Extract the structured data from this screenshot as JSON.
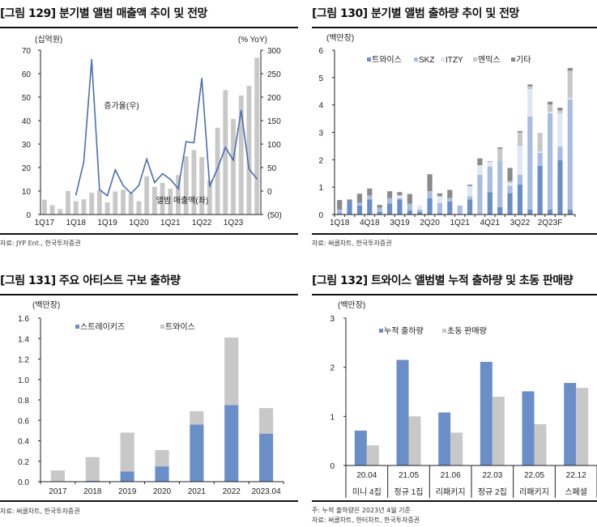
{
  "panels": [
    {
      "title": "[그림 129] 분기별 앨범 매출액 추이 및 전망",
      "source": "자료: JYP Ent., 한국투자증권"
    },
    {
      "title": "[그림 130] 분기별 앨범 출하량 추이 및 전망",
      "source": "자료: 써클차트, 한국투자증권"
    },
    {
      "title": "[그림 131] 주요 아티스트 구보 출하량",
      "source": "자료: 써클차트, 한국투자증권"
    },
    {
      "title": "[그림 132] 트와이스 앨범별 누적 출하량 및 초동 판매량",
      "note": "주: 누적 출하량은 2023년 4월 기준",
      "source": "자료: 써클차트, 한터차트, 한국투자증권"
    }
  ],
  "colors": {
    "gray_bar": "#c8c8c8",
    "line": "#4a6fb0",
    "twice": "#6a8fc8",
    "skz": "#a9bde2",
    "itzy": "#e0e7f4",
    "nmixx": "#c8c8c8",
    "other": "#8a8a8a",
    "label_blue": "#7b9ac8"
  },
  "chart_data": [
    {
      "type": "bar+line",
      "title": "[그림 129] 분기별 앨범 매출액 추이 및 전망",
      "ylabel": "(십억원)",
      "y2label": "(% YoY)",
      "ylim": [
        0,
        70
      ],
      "y2lim": [
        -50,
        300
      ],
      "yticks": [
        "0",
        "10",
        "20",
        "30",
        "40",
        "50",
        "60",
        "70"
      ],
      "y2ticks": [
        "(50)",
        "0",
        "50",
        "100",
        "150",
        "200",
        "250",
        "300"
      ],
      "categories": [
        "1Q17",
        "2Q17",
        "3Q17",
        "4Q17",
        "1Q18",
        "2Q18",
        "3Q18",
        "4Q18",
        "1Q19",
        "2Q19",
        "3Q19",
        "4Q19",
        "1Q20",
        "2Q20",
        "3Q20",
        "4Q20",
        "1Q21",
        "2Q21",
        "3Q21",
        "4Q21",
        "1Q22",
        "2Q22",
        "3Q22",
        "4Q22",
        "1Q23",
        "2Q23",
        "3Q23",
        "4Q23"
      ],
      "xtick_labels": [
        "1Q17",
        "1Q18",
        "1Q19",
        "1Q20",
        "1Q21",
        "1Q22",
        "1Q23"
      ],
      "series": [
        {
          "name": "앨범 매출액(좌)",
          "type": "bar",
          "axis": "left",
          "values": [
            6.3,
            4.0,
            2.3,
            10.0,
            5.7,
            6.5,
            9.3,
            10.5,
            5.2,
            9.8,
            10.5,
            9.0,
            5.7,
            16.3,
            11.8,
            13.5,
            11.0,
            16.8,
            24.8,
            27.5,
            24.5,
            14.5,
            37.0,
            53.0,
            40.7,
            50.7,
            54.8,
            66.8
          ]
        },
        {
          "name": "증가율(우)",
          "type": "line",
          "axis": "right",
          "values": [
            null,
            null,
            null,
            null,
            -8,
            62,
            280,
            3,
            -10,
            45,
            12,
            -5,
            12,
            68,
            18,
            37,
            25,
            5,
            105,
            103,
            240,
            10,
            48,
            93,
            66,
            172,
            47,
            26
          ]
        }
      ]
    },
    {
      "type": "stacked-bar",
      "title": "[그림 130] 분기별 앨범 출하량 추이 및 전망",
      "ylabel": "(백만장)",
      "ylim": [
        0,
        6
      ],
      "yticks": [
        "0",
        "1",
        "2",
        "3",
        "4",
        "5",
        "6"
      ],
      "categories": [
        "1Q18",
        "2Q18",
        "3Q18",
        "4Q18",
        "1Q19",
        "2Q19",
        "3Q19",
        "4Q19",
        "1Q20",
        "2Q20",
        "3Q20",
        "4Q20",
        "1Q21",
        "2Q21",
        "3Q21",
        "4Q21",
        "1Q22",
        "2Q22",
        "3Q22",
        "4Q22",
        "1Q23",
        "2Q23F",
        "3Q23F",
        "4Q23F"
      ],
      "xtick_labels": [
        "1Q18",
        "4Q18",
        "3Q19",
        "2Q20",
        "1Q21",
        "4Q21",
        "3Q22",
        "2Q23F"
      ],
      "legend": "top",
      "series": [
        {
          "name": "트와이스",
          "values": [
            0.05,
            0.47,
            0.33,
            0.55,
            0.1,
            0.4,
            0.55,
            0.15,
            0.1,
            0.6,
            0.05,
            0.48,
            0.0,
            0.55,
            0.0,
            0.82,
            0.27,
            0.78,
            1.1,
            0.18,
            1.78,
            0.18,
            1.98,
            0.18
          ]
        },
        {
          "name": "SKZ",
          "values": [
            0.13,
            0.0,
            0.1,
            0.15,
            0.15,
            0.2,
            0.05,
            0.25,
            0.08,
            0.25,
            0.37,
            0.12,
            0.33,
            0.12,
            1.45,
            0.93,
            1.68,
            0.27,
            0.35,
            3.4,
            0.47,
            3.52,
            0.5,
            4.02
          ]
        },
        {
          "name": "ITZY",
          "values": [
            0,
            0,
            0,
            0,
            0,
            0,
            0.1,
            0,
            0.15,
            0,
            0.25,
            0,
            0,
            0.37,
            0.35,
            0.17,
            0,
            0.1,
            1.05,
            1.0,
            0.05,
            0.05,
            1.22,
            0.05
          ]
        },
        {
          "name": "엔믹스",
          "values": [
            0,
            0,
            0,
            0,
            0,
            0,
            0,
            0,
            0,
            0,
            0,
            0,
            0,
            0,
            0,
            0,
            0.45,
            0.07,
            0.5,
            0.1,
            0.68,
            0.27,
            0.1,
            1.0
          ]
        },
        {
          "name": "기타",
          "values": [
            0.35,
            0.08,
            0.33,
            0.25,
            0.1,
            0.25,
            0.12,
            0.35,
            0.0,
            0.62,
            0.1,
            0.3,
            0.0,
            0.05,
            0.25,
            0.02,
            0.05,
            0.48,
            0.05,
            0.07,
            0.0,
            0.1,
            0.1,
            0.1
          ]
        }
      ]
    },
    {
      "type": "stacked-bar",
      "title": "[그림 131] 주요 아티스트 구보 출하량",
      "ylabel": "(백만장)",
      "ylim": [
        0,
        1.6
      ],
      "yticks": [
        "0.0",
        "0.2",
        "0.4",
        "0.6",
        "0.8",
        "1.0",
        "1.2",
        "1.4",
        "1.6"
      ],
      "categories": [
        "2017",
        "2018",
        "2019",
        "2020",
        "2021",
        "2022",
        "2023.04"
      ],
      "legend": "top",
      "series": [
        {
          "name": "스트레이키즈",
          "values": [
            0.0,
            0.01,
            0.1,
            0.15,
            0.56,
            0.75,
            0.47
          ]
        },
        {
          "name": "트와이스",
          "values": [
            0.11,
            0.23,
            0.38,
            0.16,
            0.13,
            0.66,
            0.25
          ]
        }
      ]
    },
    {
      "type": "bar",
      "title": "[그림 132] 트와이스 앨범별 누적 출하량 및 초동 판매량",
      "ylabel": "(백만장)",
      "ylim": [
        0,
        3
      ],
      "yticks": [
        "0",
        "1",
        "2",
        "3"
      ],
      "categories": [
        "20.04",
        "21.05",
        "21.06",
        "22.03",
        "22.05",
        "22.12"
      ],
      "subcategories": [
        "미니 4집",
        "정규 1집",
        "리패키지",
        "정규 2집",
        "리패키지",
        "스페셜"
      ],
      "legend": "top",
      "series": [
        {
          "name": "누적 출하량",
          "values": [
            0.71,
            2.15,
            1.08,
            2.11,
            1.51,
            1.68
          ]
        },
        {
          "name": "초동 판매량",
          "values": [
            0.41,
            1.0,
            0.67,
            1.4,
            0.84,
            1.58
          ]
        }
      ]
    }
  ],
  "annotations": {
    "c0_line": "증가율(우)",
    "c0_bar": "앨범 매출액(좌)"
  }
}
